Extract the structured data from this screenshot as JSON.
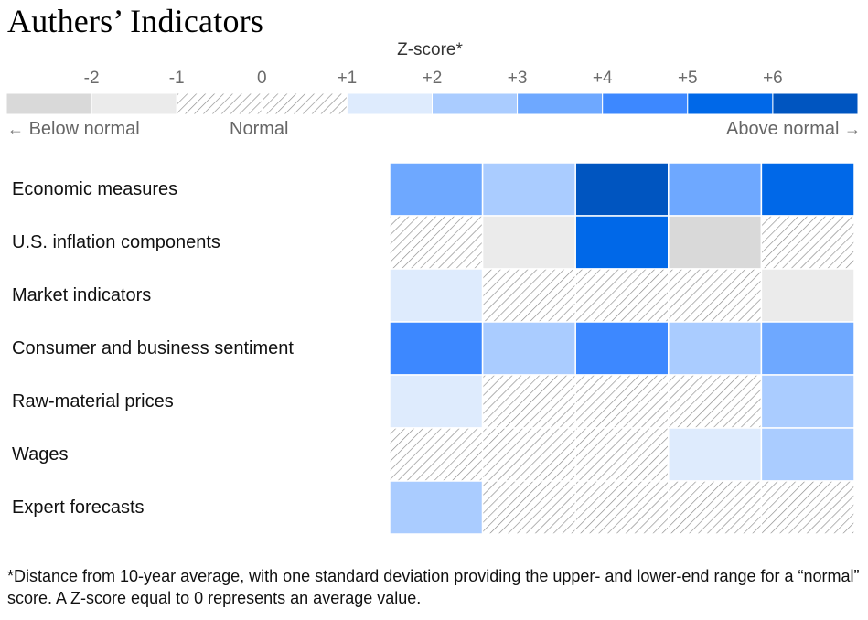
{
  "title": "Authers’ Indicators",
  "legend": {
    "title": "Z-score*",
    "ticks": [
      "-2",
      "-1",
      "0",
      "+1",
      "+2",
      "+3",
      "+4",
      "+5",
      "+6"
    ],
    "below_label": "Below normal",
    "normal_label": "Normal",
    "above_label": "Above normal",
    "arrow_left": "←",
    "arrow_right": "→",
    "bins": [
      {
        "range": [
          -3,
          -2
        ],
        "color": "#d9d9d9"
      },
      {
        "range": [
          -2,
          -1
        ],
        "color": "#ebebeb"
      },
      {
        "range": [
          -1,
          1
        ],
        "color": "hatch"
      },
      {
        "range": [
          1,
          2
        ],
        "color": "#deebfd"
      },
      {
        "range": [
          2,
          3
        ],
        "color": "#aaccff"
      },
      {
        "range": [
          3,
          4
        ],
        "color": "#6ea8ff"
      },
      {
        "range": [
          4,
          5
        ],
        "color": "#3d88ff"
      },
      {
        "range": [
          5,
          6
        ],
        "color": "#0068e8"
      },
      {
        "range": [
          6,
          7
        ],
        "color": "#0055c0"
      }
    ]
  },
  "chart_data": {
    "type": "heatmap",
    "value_description": "Z-score bin per cell (bin lower bound; 'normal' = between -1 and +1)",
    "rows": [
      "Economic measures",
      "U.S. inflation components",
      "Market indicators",
      "Consumer and business sentiment",
      "Raw-material prices",
      "Wages",
      "Expert forecasts"
    ],
    "columns": 5,
    "values": [
      [
        3,
        2,
        6,
        3,
        5
      ],
      [
        "normal",
        -2,
        5,
        -3,
        "normal"
      ],
      [
        1,
        "normal",
        "normal",
        "normal",
        -2
      ],
      [
        4,
        2,
        4,
        2,
        3
      ],
      [
        1,
        "normal",
        "normal",
        "normal",
        2
      ],
      [
        "normal",
        "normal",
        "normal",
        1,
        2
      ],
      [
        2,
        "normal",
        "normal",
        "normal",
        "normal"
      ]
    ],
    "colors": {
      "-3": "#d9d9d9",
      "-2": "#ebebeb",
      "normal": "hatch",
      "1": "#deebfd",
      "2": "#aaccff",
      "3": "#6ea8ff",
      "4": "#3d88ff",
      "5": "#0068e8",
      "6": "#0055c0"
    }
  },
  "footnote": "*Distance from 10-year average, with one standard deviation providing the upper- and lower-end range for a “normal” score. A Z-score equal to 0 represents an average value."
}
